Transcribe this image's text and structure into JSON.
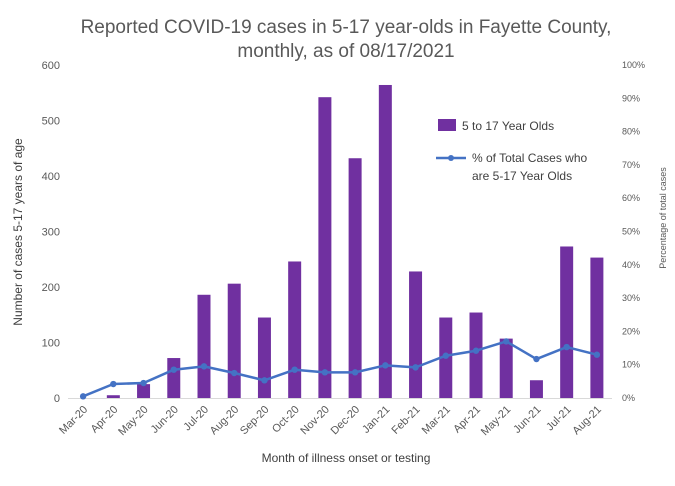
{
  "chart_data": {
    "type": "bar",
    "title_lines": [
      "Reported COVID-19 cases in 5-17 year-olds in Fayette County,",
      "monthly, as of 08/17/2021"
    ],
    "xlabel": "Month of illness onset or testing",
    "ylabel": "Number of cases 5-17 years of age",
    "y2label": "Percentage of total cases",
    "categories": [
      "Mar-20",
      "Apr-20",
      "May-20",
      "Jun-20",
      "Jul-20",
      "Aug-20",
      "Sep-20",
      "Oct-20",
      "Nov-20",
      "Dec-20",
      "Jan-21",
      "Feb-21",
      "Mar-21",
      "Apr-21",
      "May-21",
      "Jun-21",
      "Jul-21",
      "Aug-21"
    ],
    "ylim": [
      0,
      600
    ],
    "y_ticks": [
      "0",
      "100",
      "200",
      "300",
      "400",
      "500",
      "600"
    ],
    "y2lim": [
      0,
      100
    ],
    "y2_ticks": [
      "0%",
      "10%",
      "20%",
      "30%",
      "40%",
      "50%",
      "60%",
      "70%",
      "80%",
      "90%",
      "100%"
    ],
    "grid": false,
    "legend_position": "right, upper middle",
    "series": [
      {
        "name": "5 to 17 Year Olds",
        "type": "bar",
        "axis": "left",
        "color": "#7030A0",
        "values": [
          0,
          5,
          25,
          72,
          186,
          206,
          145,
          246,
          542,
          432,
          564,
          228,
          145,
          154,
          107,
          32,
          273,
          253
        ]
      },
      {
        "name": "% of Total Cases who are 5-17 Year Olds",
        "legend_lines": [
          "% of Total Cases who",
          "are 5-17 Year Olds"
        ],
        "type": "line",
        "axis": "right",
        "color": "#4472C4",
        "values": [
          0.5,
          4.2,
          4.5,
          8.5,
          9.5,
          7.5,
          5.3,
          8.5,
          7.7,
          7.7,
          9.8,
          9.2,
          12.7,
          14.2,
          17.0,
          11.7,
          15.3,
          13.0
        ]
      }
    ]
  }
}
